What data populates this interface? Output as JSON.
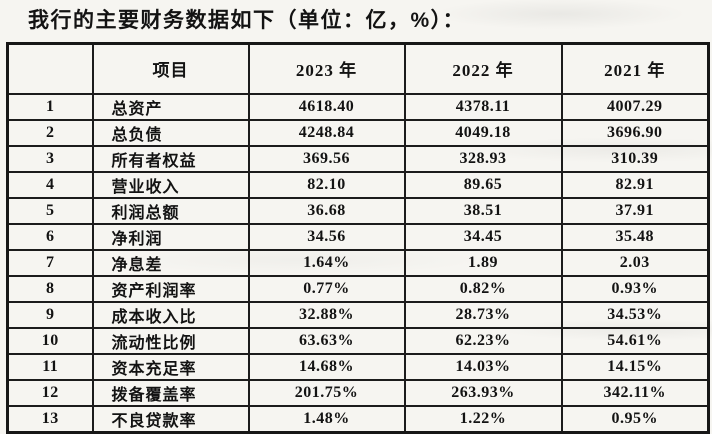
{
  "page": {
    "title": "我行的主要财务数据如下（单位：亿，%）："
  },
  "table": {
    "headers": {
      "no": "",
      "item": "项目",
      "y2023": "2023 年",
      "y2022": "2022 年",
      "y2021": "2021 年"
    },
    "rows": [
      {
        "no": "1",
        "item": "总资产",
        "y2023": "4618.40",
        "y2022": "4378.11",
        "y2021": "4007.29"
      },
      {
        "no": "2",
        "item": "总负债",
        "y2023": "4248.84",
        "y2022": "4049.18",
        "y2021": "3696.90"
      },
      {
        "no": "3",
        "item": "所有者权益",
        "y2023": "369.56",
        "y2022": "328.93",
        "y2021": "310.39"
      },
      {
        "no": "4",
        "item": "营业收入",
        "y2023": "82.10",
        "y2022": "89.65",
        "y2021": "82.91"
      },
      {
        "no": "5",
        "item": "利润总额",
        "y2023": "36.68",
        "y2022": "38.51",
        "y2021": "37.91"
      },
      {
        "no": "6",
        "item": "净利润",
        "y2023": "34.56",
        "y2022": "34.45",
        "y2021": "35.48"
      },
      {
        "no": "7",
        "item": "净息差",
        "y2023": "1.64%",
        "y2022": "1.89",
        "y2021": "2.03"
      },
      {
        "no": "8",
        "item": "资产利润率",
        "y2023": "0.77%",
        "y2022": "0.82%",
        "y2021": "0.93%"
      },
      {
        "no": "9",
        "item": "成本收入比",
        "y2023": "32.88%",
        "y2022": "28.73%",
        "y2021": "34.53%"
      },
      {
        "no": "10",
        "item": "流动性比例",
        "y2023": "63.63%",
        "y2022": "62.23%",
        "y2021": "54.61%"
      },
      {
        "no": "11",
        "item": "资本充足率",
        "y2023": "14.68%",
        "y2022": "14.03%",
        "y2021": "14.15%"
      },
      {
        "no": "12",
        "item": "拨备覆盖率",
        "y2023": "201.75%",
        "y2022": "263.93%",
        "y2021": "342.11%"
      },
      {
        "no": "13",
        "item": "不良贷款率",
        "y2023": "1.48%",
        "y2022": "1.22%",
        "y2021": "0.95%"
      }
    ]
  }
}
